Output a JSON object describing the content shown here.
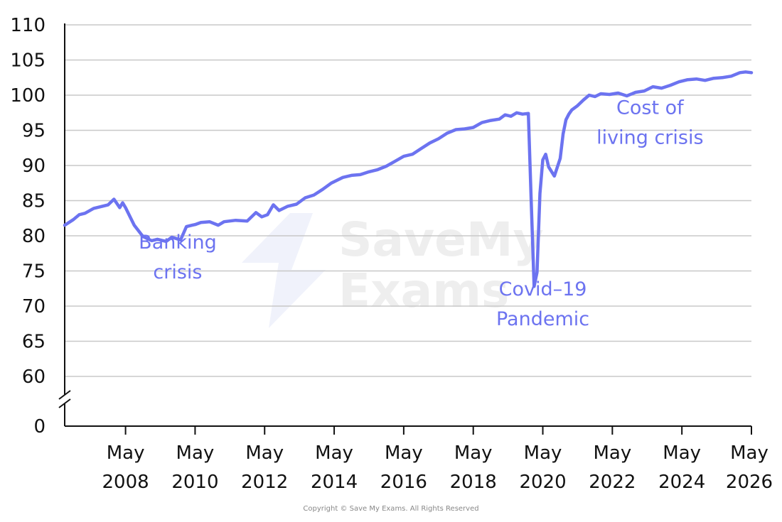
{
  "colors": {
    "line": "#6C73F0",
    "axis": "#111111",
    "grid": "#c8c8c8",
    "watermark": "#eeeeee"
  },
  "watermark": {
    "line1": "SaveMy",
    "line2": "Exams"
  },
  "copyright": "Copyright © Save My Exams. All Rights Reserved",
  "chart_data": {
    "type": "line",
    "title": "",
    "xlabel": "",
    "ylabel": "",
    "axis_break": true,
    "grid": "horizontal",
    "ylim": [
      60,
      110
    ],
    "y_ticks": [
      0,
      60,
      65,
      70,
      75,
      80,
      85,
      90,
      95,
      100,
      105,
      110
    ],
    "x_range": [
      "2006-08",
      "2026-05"
    ],
    "x_ticks": [
      {
        "x": "2008-05",
        "line1": "May",
        "line2": "2008"
      },
      {
        "x": "2010-05",
        "line1": "May",
        "line2": "2010"
      },
      {
        "x": "2012-05",
        "line1": "May",
        "line2": "2012"
      },
      {
        "x": "2014-05",
        "line1": "May",
        "line2": "2014"
      },
      {
        "x": "2016-05",
        "line1": "May",
        "line2": "2016"
      },
      {
        "x": "2018-05",
        "line1": "May",
        "line2": "2018"
      },
      {
        "x": "2020-05",
        "line1": "May",
        "line2": "2020"
      },
      {
        "x": "2022-05",
        "line1": "May",
        "line2": "2022"
      },
      {
        "x": "2024-05",
        "line1": "May",
        "line2": "2024"
      },
      {
        "x": "2026-05",
        "line1": "May",
        "line2": "2026"
      }
    ],
    "series": [
      {
        "x": [
          "2006-08",
          "2006-11",
          "2007-01",
          "2007-03",
          "2007-06",
          "2007-09",
          "2007-11",
          "2008-01",
          "2008-03",
          "2008-04",
          "2008-05",
          "2008-08",
          "2008-11",
          "2009-02",
          "2009-04",
          "2009-07",
          "2009-09",
          "2009-12",
          "2010-02",
          "2010-04",
          "2010-05",
          "2010-07",
          "2010-10",
          "2011-01",
          "2011-03",
          "2011-07",
          "2011-11",
          "2012-02",
          "2012-04",
          "2012-06",
          "2012-08",
          "2012-10",
          "2013-01",
          "2013-04",
          "2013-07",
          "2013-10",
          "2014-01",
          "2014-04",
          "2014-08",
          "2014-11",
          "2015-02",
          "2015-05",
          "2015-08",
          "2015-11",
          "2016-02",
          "2016-05",
          "2016-08",
          "2016-11",
          "2017-02",
          "2017-05",
          "2017-08",
          "2017-11",
          "2018-02",
          "2018-05",
          "2018-08",
          "2018-11",
          "2019-02",
          "2019-04",
          "2019-06",
          "2019-08",
          "2019-10",
          "2019-12",
          "2020-01",
          "2020-02",
          "2020-03",
          "2020-04",
          "2020-05",
          "2020-06",
          "2020-07",
          "2020-09",
          "2020-11",
          "2020-12",
          "2021-01",
          "2021-02",
          "2021-03",
          "2021-05",
          "2021-07",
          "2021-09",
          "2021-11",
          "2022-01",
          "2022-04",
          "2022-07",
          "2022-10",
          "2023-01",
          "2023-04",
          "2023-07",
          "2023-10",
          "2024-01",
          "2024-04",
          "2024-07",
          "2024-10",
          "2025-01",
          "2025-04",
          "2025-07",
          "2025-10",
          "2026-01",
          "2026-03",
          "2026-05"
        ],
        "y": [
          81.5,
          82.3,
          83,
          83.2,
          83.9,
          84.2,
          84.4,
          85.2,
          84,
          84.7,
          84,
          81.5,
          79.9,
          79.3,
          79.5,
          79.2,
          79.8,
          79.4,
          81.3,
          81.5,
          81.6,
          81.9,
          82,
          81.5,
          82,
          82.2,
          82.1,
          83.3,
          82.7,
          83,
          84.4,
          83.6,
          84.2,
          84.5,
          85.4,
          85.8,
          86.6,
          87.5,
          88.3,
          88.6,
          88.7,
          89.1,
          89.4,
          89.9,
          90.6,
          91.3,
          91.6,
          92.4,
          93.2,
          93.8,
          94.6,
          95.1,
          95.2,
          95.4,
          96.1,
          96.4,
          96.6,
          97.2,
          97,
          97.5,
          97.3,
          97.4,
          85,
          72.8,
          74.8,
          86,
          90.8,
          91.6,
          89.8,
          88.5,
          91,
          94.5,
          96.5,
          97.3,
          97.9,
          98.5,
          99.3,
          100,
          99.8,
          100.2,
          100.1,
          100.3,
          99.9,
          100.4,
          100.6,
          101.2,
          101,
          101.4,
          101.9,
          102.2,
          102.3,
          102.1,
          102.4,
          102.5,
          102.7,
          103.2,
          103.3,
          103.2
        ]
      }
    ],
    "annotations": [
      {
        "id": "banking",
        "x": "2009-11",
        "y": 78.2,
        "lines": [
          "Banking",
          "crisis"
        ]
      },
      {
        "id": "covid",
        "x": "2020-05",
        "y": 71.5,
        "lines": [
          "Covid–19",
          "Pandemic"
        ]
      },
      {
        "id": "col",
        "x": "2023-06",
        "y": 97.3,
        "lines": [
          "Cost  of",
          "living crisis"
        ]
      }
    ]
  }
}
